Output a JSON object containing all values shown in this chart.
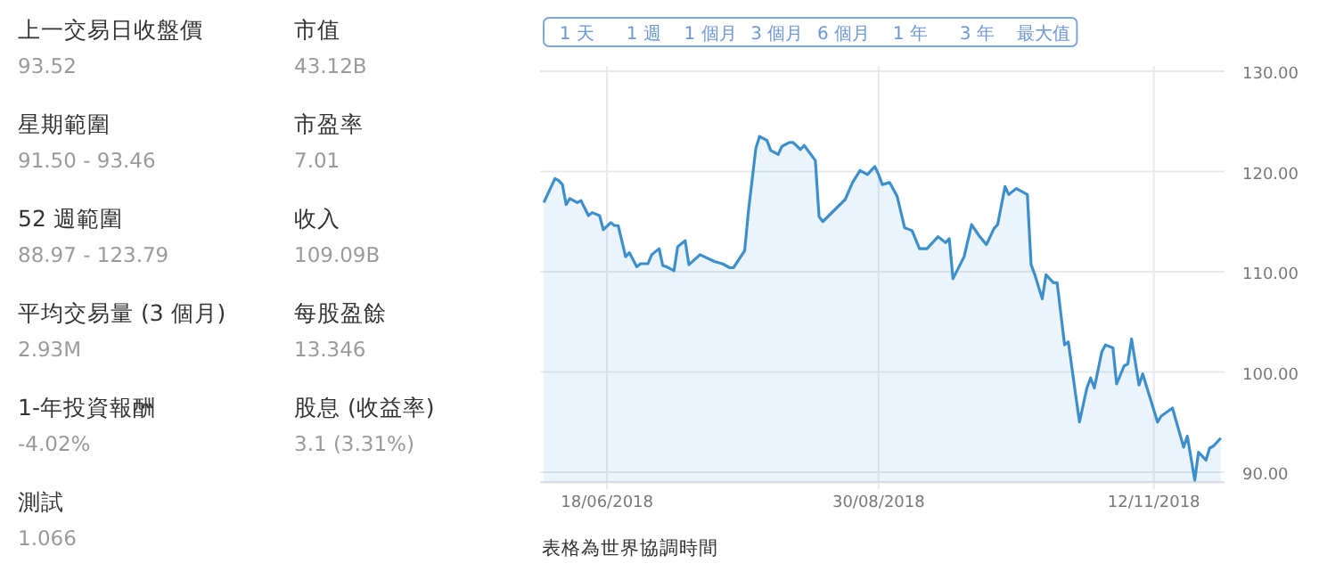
{
  "chart_data": [
    {
      "type": "other",
      "annotations": [
        "上一交易日收盤價",
        "93.52",
        "星期範圍",
        "91.50 - 93.46",
        "52 週範圍",
        "88.97 - 123.79",
        "平均交易量 (3 個月)",
        "2.93M",
        "1-年投資報酬",
        "-4.02%",
        "測試",
        "1.066",
        "市值",
        "43.12B",
        "市盈率",
        "7.01",
        "收入",
        "109.09B",
        "每股盈餘",
        "13.346",
        "股息 (收益率)",
        "3.1 (3.31%)"
      ]
    },
    {
      "type": "area",
      "annotations": [
        "1 天",
        "1 週",
        "1 個月",
        "3 個月",
        "6 個月",
        "1 年",
        "3 年",
        "最大值",
        "表格為世界協調時間"
      ],
      "xlim": [
        "2018-05-31",
        "2018-12-01"
      ],
      "xticks": [
        {
          "value": "2018-06-18",
          "label": "18/06/2018"
        },
        {
          "value": "2018-08-30",
          "label": "30/08/2018"
        },
        {
          "value": "2018-11-12",
          "label": "12/11/2018"
        }
      ],
      "ylim": [
        89,
        130.5
      ],
      "yticks": [
        {
          "value": 90,
          "label": "90.00"
        },
        {
          "value": 100,
          "label": "100.00"
        },
        {
          "value": 110,
          "label": "110.00"
        },
        {
          "value": 120,
          "label": "120.00"
        },
        {
          "value": 130,
          "label": "130.00"
        }
      ],
      "grid": true,
      "series": [
        {
          "color": "#3d8fcc",
          "x": [
            "2018-06-01",
            "2018-06-04",
            "2018-06-05",
            "2018-06-06",
            "2018-06-07",
            "2018-06-08",
            "2018-06-10",
            "2018-06-11",
            "2018-06-13",
            "2018-06-14",
            "2018-06-16",
            "2018-06-17",
            "2018-06-19",
            "2018-06-20",
            "2018-06-21",
            "2018-06-23",
            "2018-06-24",
            "2018-06-26",
            "2018-06-27",
            "2018-06-29",
            "2018-06-30",
            "2018-07-02",
            "2018-07-03",
            "2018-07-04",
            "2018-07-06",
            "2018-07-07",
            "2018-07-09",
            "2018-07-10",
            "2018-07-13",
            "2018-07-17",
            "2018-07-19",
            "2018-07-21",
            "2018-07-22",
            "2018-07-25",
            "2018-07-26",
            "2018-07-28",
            "2018-07-29",
            "2018-07-31",
            "2018-08-01",
            "2018-08-03",
            "2018-08-04",
            "2018-08-06",
            "2018-08-07",
            "2018-08-09",
            "2018-08-10",
            "2018-08-13",
            "2018-08-14",
            "2018-08-15",
            "2018-08-21",
            "2018-08-23",
            "2018-08-25",
            "2018-08-27",
            "2018-08-29",
            "2018-08-30",
            "2018-08-31",
            "2018-09-02",
            "2018-09-04",
            "2018-09-06",
            "2018-09-08",
            "2018-09-10",
            "2018-09-12",
            "2018-09-14",
            "2018-09-15",
            "2018-09-17",
            "2018-09-18",
            "2018-09-19",
            "2018-09-22",
            "2018-09-24",
            "2018-09-26",
            "2018-09-28",
            "2018-09-30",
            "2018-10-01",
            "2018-10-03",
            "2018-10-04",
            "2018-10-06",
            "2018-10-07",
            "2018-10-09",
            "2018-10-10",
            "2018-10-11",
            "2018-10-13",
            "2018-10-14",
            "2018-10-16",
            "2018-10-17",
            "2018-10-19",
            "2018-10-20",
            "2018-10-23",
            "2018-10-25",
            "2018-10-26",
            "2018-10-27",
            "2018-10-29",
            "2018-10-30",
            "2018-11-01",
            "2018-11-02",
            "2018-11-04",
            "2018-11-05",
            "2018-11-06",
            "2018-11-08",
            "2018-11-09",
            "2018-11-13",
            "2018-11-14",
            "2018-11-17",
            "2018-11-20",
            "2018-11-21",
            "2018-11-23",
            "2018-11-24",
            "2018-11-26",
            "2018-11-27",
            "2018-11-28",
            "2018-11-30"
          ],
          "values": [
            116.9,
            119.3,
            119.1,
            118.7,
            116.7,
            117.3,
            116.9,
            117.1,
            115.6,
            115.9,
            115.6,
            114.2,
            114.9,
            114.6,
            114.6,
            111.5,
            111.9,
            110.5,
            110.8,
            110.8,
            111.7,
            112.3,
            110.6,
            110.5,
            110.1,
            112.5,
            113.1,
            110.7,
            111.7,
            111.0,
            110.8,
            110.4,
            110.4,
            112.1,
            116.0,
            122.3,
            123.5,
            123.1,
            122.1,
            121.7,
            122.5,
            122.9,
            122.9,
            122.2,
            122.6,
            121.1,
            115.5,
            115.0,
            117.2,
            118.9,
            120.1,
            119.7,
            120.5,
            119.7,
            118.7,
            118.9,
            117.5,
            114.4,
            114.1,
            112.3,
            112.3,
            113.1,
            113.5,
            112.9,
            113.3,
            109.3,
            111.5,
            114.7,
            113.6,
            112.7,
            114.3,
            114.7,
            118.5,
            117.7,
            118.3,
            118.1,
            117.7,
            110.7,
            109.7,
            107.3,
            109.7,
            108.9,
            108.9,
            102.7,
            103.0,
            95.0,
            98.4,
            99.4,
            98.4,
            102.0,
            102.7,
            102.4,
            98.8,
            100.6,
            100.8,
            103.3,
            98.7,
            99.8,
            95.0,
            95.6,
            96.4,
            92.5,
            93.6,
            89.2,
            92.0,
            91.2,
            92.4,
            92.6,
            93.4
          ]
        }
      ]
    }
  ]
}
